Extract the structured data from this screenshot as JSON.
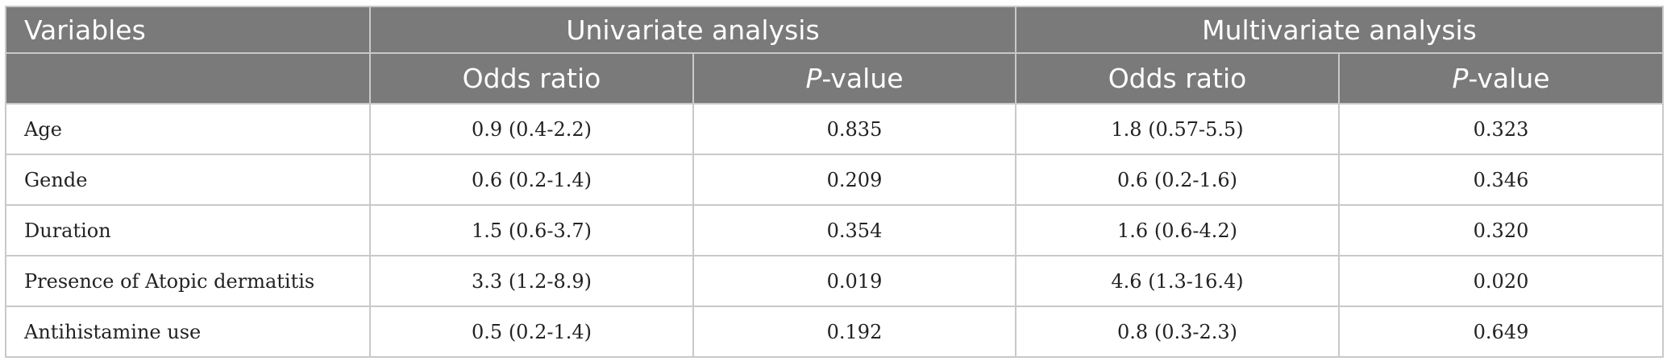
{
  "header": {
    "row1": {
      "variables": "Variables",
      "univariate": "Univariate analysis",
      "multivariate": "Multivariate analysis"
    },
    "row2": {
      "uni_odds": "Odds ratio",
      "uni_p_prefix": "P",
      "uni_p_suffix": "-value",
      "multi_odds": "Odds ratio",
      "multi_p_prefix": "P",
      "multi_p_suffix": "-value"
    }
  },
  "rows": [
    {
      "variable": "Age",
      "uni_or": "0.9 (0.4-2.2)",
      "uni_p": "0.835",
      "multi_or": "1.8 (0.57-5.5)",
      "multi_p": "0.323"
    },
    {
      "variable": "Gende",
      "uni_or": "0.6 (0.2-1.4)",
      "uni_p": "0.209",
      "multi_or": "0.6 (0.2-1.6)",
      "multi_p": "0.346"
    },
    {
      "variable": "Duration",
      "uni_or": "1.5 (0.6-3.7)",
      "uni_p": "0.354",
      "multi_or": "1.6 (0.6-4.2)",
      "multi_p": "0.320"
    },
    {
      "variable": "Presence of Atopic dermatitis",
      "uni_or": "3.3 (1.2-8.9)",
      "uni_p": "0.019",
      "multi_or": "4.6 (1.3-16.4)",
      "multi_p": "0.020"
    },
    {
      "variable": "Antihistamine use",
      "uni_or": "0.5 (0.2-1.4)",
      "uni_p": "0.192",
      "multi_or": "0.8 (0.3-2.3)",
      "multi_p": "0.649"
    }
  ],
  "colors": {
    "header_bg": "#7a7a7a",
    "header_text": "#ffffff",
    "border": "#c9c9c9",
    "body_text": "#222222"
  }
}
